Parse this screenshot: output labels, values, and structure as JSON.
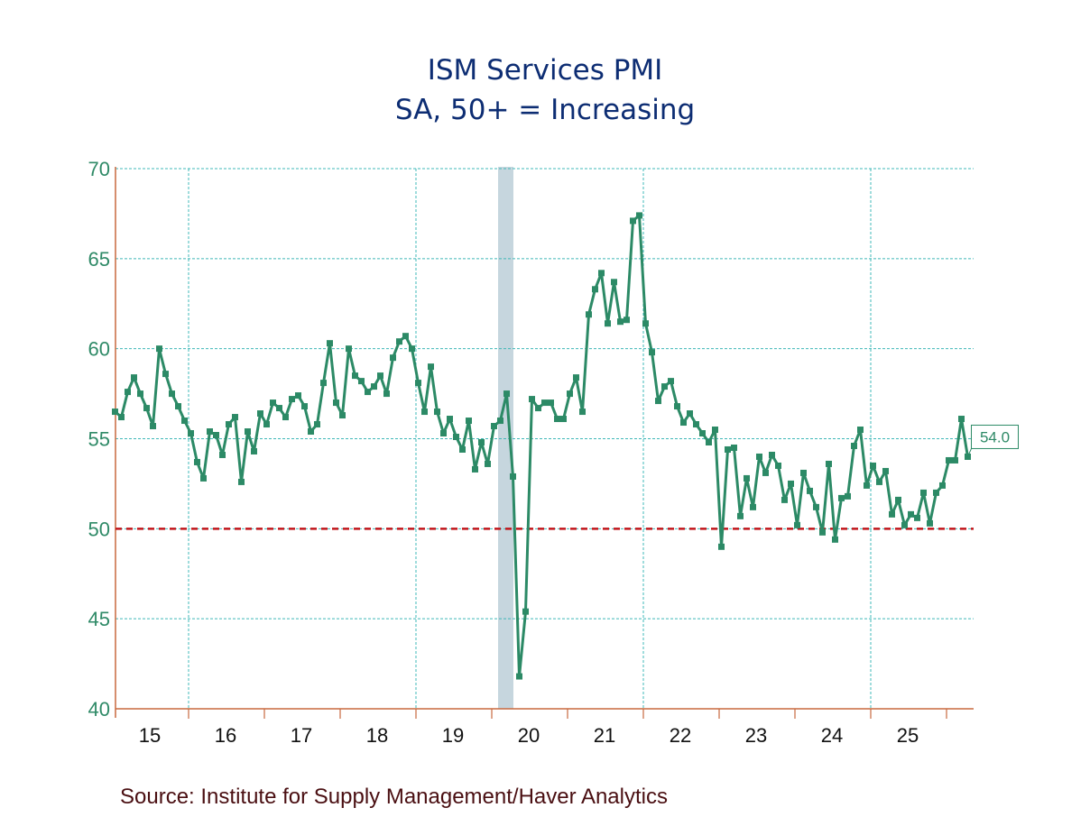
{
  "chart_data": {
    "type": "line",
    "title": "ISM Services PMI",
    "subtitle": "SA, 50+ = Increasing",
    "xlabel": "",
    "ylabel": "",
    "ylim": [
      40,
      70
    ],
    "yticks": [
      40,
      45,
      50,
      55,
      60,
      65,
      70
    ],
    "xlim": [
      "2015-01",
      "2025-09"
    ],
    "xtick_labels": [
      "15",
      "16",
      "17",
      "18",
      "19",
      "20",
      "21",
      "22",
      "23",
      "24",
      "25"
    ],
    "grid": true,
    "reference_line": {
      "value": 50,
      "style": "dashed",
      "color": "#c0161b"
    },
    "recession_shading": [
      {
        "start": "2020-02",
        "end": "2020-04"
      }
    ],
    "last_value_label": "54.0",
    "source": "Source:  Institute for Supply Management/Haver Analytics",
    "colors": {
      "series": "#2c8a66",
      "title": "#0d2d73",
      "axis": "#c8693f",
      "grid": "#3fb8b8",
      "recession": "#c6d6de",
      "reference": "#c0161b",
      "source": "#4a0f12"
    },
    "series": [
      {
        "name": "ISM Services PMI",
        "start": "2015-01",
        "frequency": "monthly",
        "values": [
          56.5,
          56.2,
          57.6,
          58.4,
          57.5,
          56.7,
          55.7,
          60.0,
          58.6,
          57.5,
          56.8,
          56.0,
          55.3,
          53.7,
          52.8,
          55.4,
          55.2,
          54.1,
          55.8,
          56.2,
          52.6,
          55.4,
          54.3,
          56.4,
          55.8,
          57.0,
          56.7,
          56.2,
          57.2,
          57.4,
          56.8,
          55.4,
          55.8,
          58.1,
          60.3,
          57.0,
          56.3,
          60.0,
          58.5,
          58.2,
          57.6,
          57.9,
          58.5,
          57.5,
          59.5,
          60.4,
          60.7,
          60.0,
          58.1,
          56.5,
          59.0,
          56.5,
          55.3,
          56.1,
          55.1,
          54.4,
          56.0,
          53.3,
          54.8,
          53.6,
          55.7,
          56.0,
          57.5,
          52.9,
          41.8,
          45.4,
          57.2,
          56.7,
          57.0,
          57.0,
          56.1,
          56.1,
          57.5,
          58.4,
          56.5,
          61.9,
          63.3,
          64.2,
          61.4,
          63.7,
          61.5,
          61.6,
          67.1,
          67.4,
          61.4,
          59.8,
          57.1,
          57.9,
          58.2,
          56.8,
          55.9,
          56.4,
          55.8,
          55.3,
          54.8,
          55.5,
          49.0,
          54.4,
          54.5,
          50.7,
          52.8,
          51.2,
          54.0,
          53.1,
          54.1,
          53.5,
          51.6,
          52.5,
          50.2,
          53.1,
          52.1,
          51.2,
          49.8,
          53.6,
          49.4,
          51.7,
          51.8,
          54.6,
          55.5,
          52.4,
          53.5,
          52.6,
          53.2,
          50.8,
          51.6,
          50.2,
          50.8,
          50.6,
          52.0,
          50.3,
          52.0,
          52.4,
          53.8,
          53.8,
          56.1,
          54.0
        ]
      }
    ]
  }
}
